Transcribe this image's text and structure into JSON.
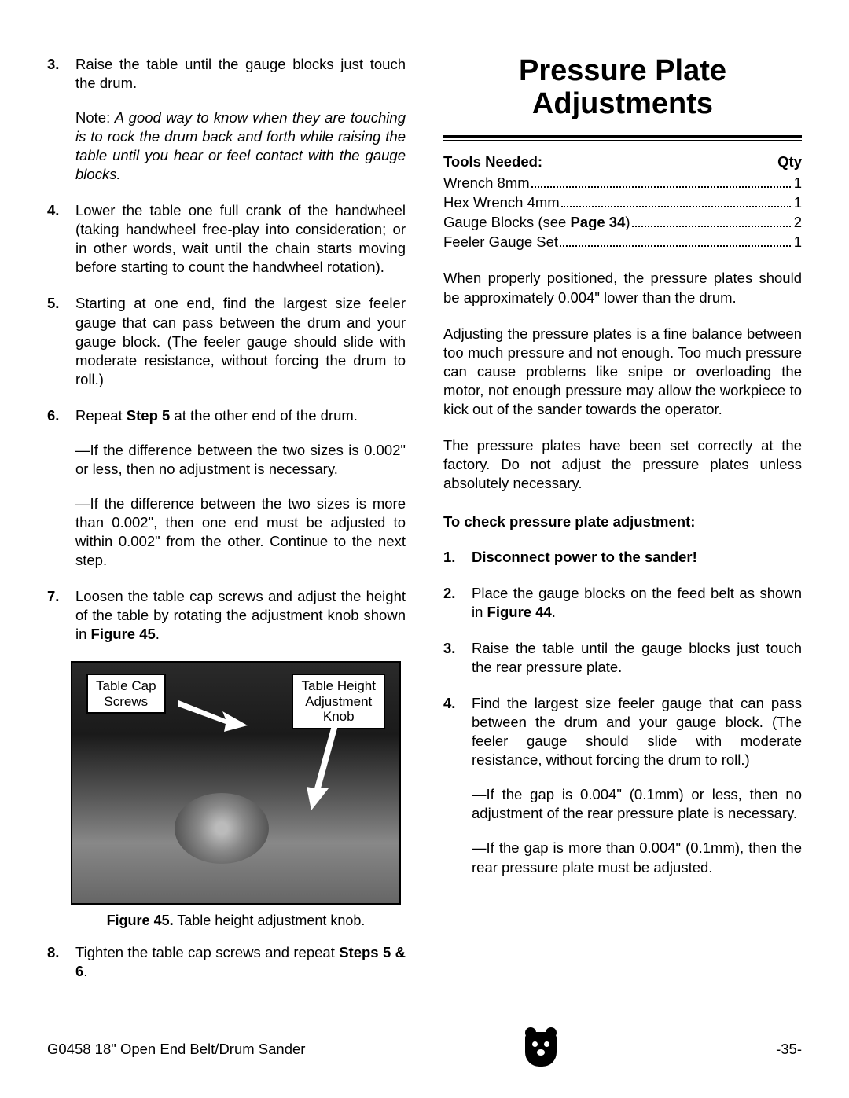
{
  "left": {
    "step3": {
      "num": "3.",
      "text": "Raise the table until the gauge blocks just touch the drum.",
      "note_label": "Note:",
      "note_italic": " A good way to know when they are touching is to rock the drum back and forth while raising the table until you hear or feel contact with the gauge blocks."
    },
    "step4": {
      "num": "4.",
      "text": "Lower the table one full crank of the handwheel (taking handwheel free-play into consider­ation; or in other words, wait until the chain starts moving before starting to count the handwheel rotation)."
    },
    "step5": {
      "num": "5.",
      "text": "Starting at one end, find the largest size feeler gauge that can pass between the drum and your gauge block. (The feeler gauge should slide with moderate resistance, without forc­ing the drum to roll.)"
    },
    "step6": {
      "num": "6.",
      "pre": "Repeat ",
      "bold": "Step 5",
      "post": " at the other end of the drum.",
      "sub1": "—If the difference between the two sizes is 0.002\" or less, then no adjustment is nec­essary.",
      "sub2": "—If the difference between the two sizes is more than 0.002\", then one end must be adjusted to within 0.002\" from the other. Continue to the next step."
    },
    "step7": {
      "num": "7.",
      "pre": "Loosen the table cap screws and adjust the height of the table by rotating the adjustment knob shown in ",
      "bold": "Figure 45",
      "post": "."
    },
    "figure": {
      "callout_left_l1": "Table Cap",
      "callout_left_l2": "Screws",
      "callout_right_l1": "Table Height",
      "callout_right_l2": "Adjustment",
      "callout_right_l3": "Knob",
      "caption_bold": "Figure 45.",
      "caption_rest": " Table height adjustment knob."
    },
    "step8": {
      "num": "8.",
      "pre": "Tighten the table cap screws and repeat ",
      "bold": "Steps 5 & 6",
      "post": "."
    }
  },
  "right": {
    "title_l1": "Pressure Plate",
    "title_l2": "Adjustments",
    "tools_label": "Tools Needed:",
    "qty_label": "Qty",
    "tools": [
      {
        "name": "Wrench 8mm",
        "qty": "1"
      },
      {
        "name_pre": "Hex Wrench 4mm",
        "qty": "1"
      },
      {
        "name_pre": "Gauge Blocks (see ",
        "name_bold": "Page 34",
        "name_post": ")",
        "qty": "2"
      },
      {
        "name": "Feeler Gauge Set",
        "qty": "1"
      }
    ],
    "p1": "When properly positioned, the pressure plates should be approximately 0.004\" lower than the drum.",
    "p2": "Adjusting the pressure plates is a fine balance between too much pressure and not enough. Too much pressure can cause problems like snipe or overloading the motor, not enough pressure may allow the workpiece to kick out of the sander towards the operator.",
    "p3": "The pressure plates have been set correctly at the factory. Do not adjust the pressure plates unless absolutely necessary.",
    "subhead": "To check pressure plate adjustment:",
    "s1": {
      "num": "1.",
      "bold": "Disconnect power to the sander!"
    },
    "s2": {
      "num": "2.",
      "pre": "Place the gauge blocks on the feed belt as shown in ",
      "bold": "Figure 44",
      "post": "."
    },
    "s3": {
      "num": "3.",
      "text": "Raise the table until the gauge blocks just touch the rear pressure plate."
    },
    "s4": {
      "num": "4.",
      "text": "Find the largest size feeler gauge that can pass between the drum and your gauge block. (The feeler gauge should slide with moderate resistance, without forcing the drum to roll.)",
      "sub1": "—If the gap is 0.004\" (0.1mm) or less, then no adjustment of the rear pressure plate is necessary.",
      "sub2": "—If the gap is more than 0.004\" (0.1mm), then the rear pressure plate must be adjusted."
    }
  },
  "footer": {
    "left": "G0458 18\" Open End Belt/Drum Sander",
    "right": "-35-"
  }
}
